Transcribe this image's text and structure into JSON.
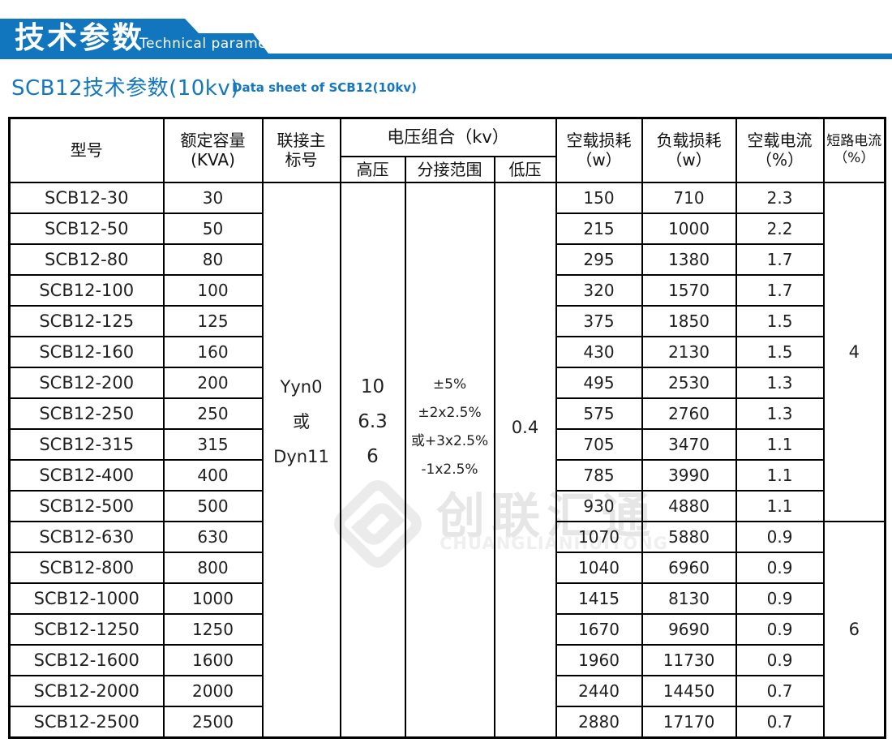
{
  "banner": {
    "title_cn": "技术参数",
    "title_en": "Technical parameter"
  },
  "page_title": {
    "cn": "SCB12技术参数(10kv)",
    "en": "Data sheet of SCB12(10kv)"
  },
  "colors": {
    "banner_blue": "#1176bd",
    "title_blue": "#1577be",
    "table_header_fill": "#a8ddf3",
    "border_black": "#000000",
    "watermark_gray": "#ebebeb"
  },
  "watermark": {
    "text_cn": "创联汇通",
    "text_en": "CHUANGLIANHUITONG",
    "logo": "diamond-brand-logo"
  },
  "table": {
    "headers": {
      "model": "型号",
      "capacity_l1": "额定容量",
      "capacity_l2": "(KVA)",
      "vector_l1": "联接主",
      "vector_l2": "标号",
      "voltage_group": "电压组合（kv）",
      "hv": "高压",
      "tap_range": "分接范围",
      "lv": "低压",
      "no_load_loss_l1": "空载损耗",
      "no_load_loss_l2": "（w）",
      "load_loss_l1": "负载损耗",
      "load_loss_l2": "（w）",
      "no_load_current_l1": "空载电流",
      "no_load_current_l2": "（%）",
      "short_circuit_l1": "短路电流",
      "short_circuit_l2": "（%）"
    },
    "merged": {
      "vector": [
        "Yyn0",
        "或",
        "Dyn11"
      ],
      "hv_values": [
        "10",
        "6.3",
        "6"
      ],
      "tap_values": [
        "±5%",
        "±2x2.5%",
        "或+3x2.5%",
        "-1x2.5%"
      ],
      "lv_value": "0.4",
      "short_circuit_groups": [
        {
          "value": "4",
          "rows": 11
        },
        {
          "value": "6",
          "rows": 7
        }
      ]
    },
    "rows": [
      {
        "model": "SCB12-30",
        "capacity": "30",
        "no_load_loss": "150",
        "load_loss": "710",
        "no_load_current": "2.3"
      },
      {
        "model": "SCB12-50",
        "capacity": "50",
        "no_load_loss": "215",
        "load_loss": "1000",
        "no_load_current": "2.2"
      },
      {
        "model": "SCB12-80",
        "capacity": "80",
        "no_load_loss": "295",
        "load_loss": "1380",
        "no_load_current": "1.7"
      },
      {
        "model": "SCB12-100",
        "capacity": "100",
        "no_load_loss": "320",
        "load_loss": "1570",
        "no_load_current": "1.7"
      },
      {
        "model": "SCB12-125",
        "capacity": "125",
        "no_load_loss": "375",
        "load_loss": "1850",
        "no_load_current": "1.5"
      },
      {
        "model": "SCB12-160",
        "capacity": "160",
        "no_load_loss": "430",
        "load_loss": "2130",
        "no_load_current": "1.5"
      },
      {
        "model": "SCB12-200",
        "capacity": "200",
        "no_load_loss": "495",
        "load_loss": "2530",
        "no_load_current": "1.3"
      },
      {
        "model": "SCB12-250",
        "capacity": "250",
        "no_load_loss": "575",
        "load_loss": "2760",
        "no_load_current": "1.3"
      },
      {
        "model": "SCB12-315",
        "capacity": "315",
        "no_load_loss": "705",
        "load_loss": "3470",
        "no_load_current": "1.1"
      },
      {
        "model": "SCB12-400",
        "capacity": "400",
        "no_load_loss": "785",
        "load_loss": "3990",
        "no_load_current": "1.1"
      },
      {
        "model": "SCB12-500",
        "capacity": "500",
        "no_load_loss": "930",
        "load_loss": "4880",
        "no_load_current": "1.1"
      },
      {
        "model": "SCB12-630",
        "capacity": "630",
        "no_load_loss": "1070",
        "load_loss": "5880",
        "no_load_current": "0.9"
      },
      {
        "model": "SCB12-800",
        "capacity": "800",
        "no_load_loss": "1040",
        "load_loss": "6960",
        "no_load_current": "0.9"
      },
      {
        "model": "SCB12-1000",
        "capacity": "1000",
        "no_load_loss": "1415",
        "load_loss": "8130",
        "no_load_current": "0.9"
      },
      {
        "model": "SCB12-1250",
        "capacity": "1250",
        "no_load_loss": "1670",
        "load_loss": "9690",
        "no_load_current": "0.9"
      },
      {
        "model": "SCB12-1600",
        "capacity": "1600",
        "no_load_loss": "1960",
        "load_loss": "11730",
        "no_load_current": "0.9"
      },
      {
        "model": "SCB12-2000",
        "capacity": "2000",
        "no_load_loss": "2440",
        "load_loss": "14450",
        "no_load_current": "0.7"
      },
      {
        "model": "SCB12-2500",
        "capacity": "2500",
        "no_load_loss": "2880",
        "load_loss": "17170",
        "no_load_current": "0.7"
      }
    ]
  }
}
